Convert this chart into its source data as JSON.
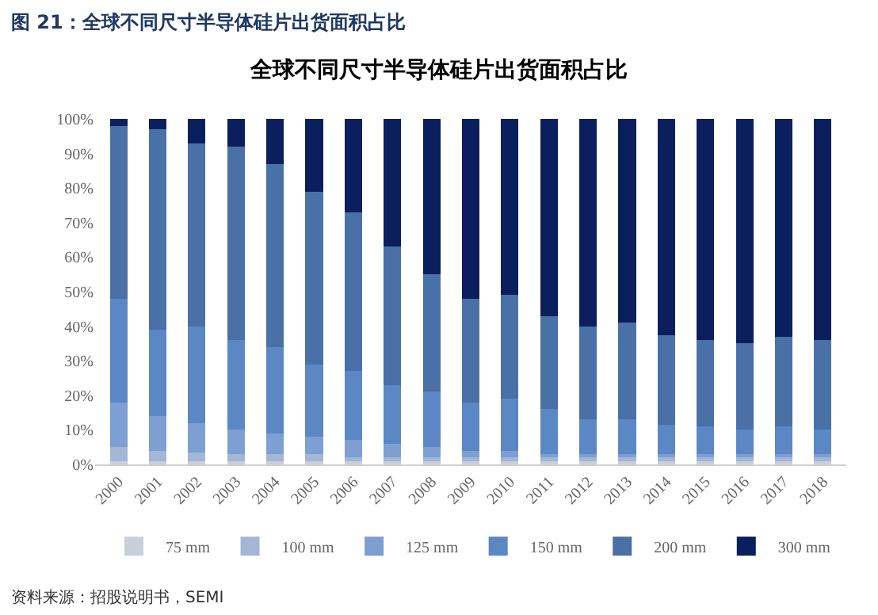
{
  "chart_data": {
    "type": "bar",
    "stacked": true,
    "title": "全球不同尺寸半导体硅片出货面积占比",
    "annotations": [
      "图 21：全球不同尺寸半导体硅片出货面积占比",
      "资料来源：招股说明书，SEMI"
    ],
    "categories": [
      "2000",
      "2001",
      "2002",
      "2003",
      "2004",
      "2005",
      "2006",
      "2007",
      "2008",
      "2009",
      "2010",
      "2011",
      "2012",
      "2013",
      "2014",
      "2015",
      "2016",
      "2017",
      "2018"
    ],
    "series": [
      {
        "name": "75 mm",
        "color": "#c8ceda",
        "values": [
          1,
          1,
          1,
          1,
          1,
          1,
          1,
          1,
          1,
          1,
          1,
          1,
          1,
          1,
          1,
          1,
          1,
          1,
          1
        ]
      },
      {
        "name": "100 mm",
        "color": "#a3b6d6",
        "values": [
          4,
          3,
          2.5,
          2,
          2,
          2,
          1,
          1,
          1,
          1,
          1,
          1,
          1,
          1,
          1,
          1,
          1,
          1,
          1
        ]
      },
      {
        "name": "125 mm",
        "color": "#7d9fd2",
        "values": [
          13,
          10,
          8.5,
          7,
          6,
          5,
          5,
          4,
          3,
          2,
          2,
          1,
          1,
          1,
          1,
          1,
          1,
          1,
          1
        ]
      },
      {
        "name": "150 mm",
        "color": "#5b87c5",
        "values": [
          30,
          25,
          28,
          26,
          25,
          21,
          20,
          17,
          16,
          14,
          15,
          13,
          10,
          10,
          8.5,
          8,
          7,
          8,
          7
        ]
      },
      {
        "name": "200 mm",
        "color": "#4a70a8",
        "values": [
          50,
          58,
          53,
          56,
          53,
          50,
          46,
          40,
          34,
          30,
          30,
          27,
          27,
          28,
          26,
          25,
          25,
          26,
          26
        ]
      },
      {
        "name": "300 mm",
        "color": "#0b1f5e",
        "values": [
          2,
          3,
          7,
          8,
          13,
          21,
          27,
          37,
          45,
          52,
          51,
          57,
          60,
          59,
          62.5,
          64,
          65,
          63,
          64
        ]
      }
    ],
    "ylim": [
      0,
      100
    ],
    "yticks": [
      {
        "value": 0,
        "label": "0%"
      },
      {
        "value": 10,
        "label": "10%"
      },
      {
        "value": 20,
        "label": "20%"
      },
      {
        "value": 30,
        "label": "30%"
      },
      {
        "value": 40,
        "label": "40%"
      },
      {
        "value": 50,
        "label": "50%"
      },
      {
        "value": 60,
        "label": "60%"
      },
      {
        "value": 70,
        "label": "70%"
      },
      {
        "value": 80,
        "label": "80%"
      },
      {
        "value": 90,
        "label": "90%"
      },
      {
        "value": 100,
        "label": "100%"
      }
    ],
    "grid": false,
    "legend": "bottom"
  }
}
